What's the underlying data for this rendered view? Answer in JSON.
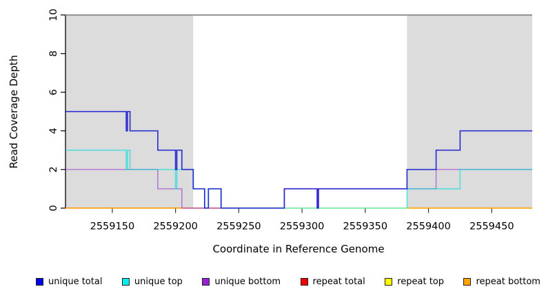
{
  "figure": {
    "background_color": "#ffffff",
    "repeat_region_fill": "#dcdcdc",
    "axis_color": "#000000",
    "tick_color": "#333333"
  },
  "chart_data": {
    "type": "line",
    "subtype": "step-coverage-plot",
    "title": "",
    "xlabel": "Coordinate in Reference Genome",
    "ylabel": "Read Coverage Depth",
    "xlim": [
      2559113,
      2559482
    ],
    "ylim": [
      0,
      10
    ],
    "x_ticks": [
      2559150,
      2559200,
      2559250,
      2559300,
      2559350,
      2559400,
      2559450
    ],
    "y_ticks": [
      0,
      2,
      4,
      6,
      8,
      10
    ],
    "grid": false,
    "shaded_repeat_regions": [
      {
        "name": "left-repeat-region",
        "x_start": 2559113,
        "x_end": 2559214
      },
      {
        "name": "right-repeat-region",
        "x_start": 2559383,
        "x_end": 2559482
      }
    ],
    "max_depth_cap_line": {
      "depth": 10,
      "color": "#8f8f8f",
      "x_start": 2559113,
      "x_end": 2559482
    },
    "series": [
      {
        "name": "unique total",
        "color": "#1c1ccd",
        "opacity": 0.9,
        "z": 6,
        "chains": [
          [
            [
              2559113,
              2559161,
              5
            ],
            [
              2559161,
              2559162,
              4
            ],
            [
              2559162,
              2559164,
              5
            ],
            [
              2559164,
              2559186,
              4
            ],
            [
              2559186,
              2559200,
              3
            ],
            [
              2559200,
              2559201,
              2
            ],
            [
              2559201,
              2559205,
              3
            ],
            [
              2559205,
              2559214,
              2
            ],
            [
              2559214,
              2559223,
              1
            ],
            [
              2559223,
              2559226,
              0
            ],
            [
              2559226,
              2559236,
              1
            ],
            [
              2559236,
              2559286,
              0
            ],
            [
              2559286,
              2559312,
              1
            ],
            [
              2559312,
              2559313,
              0
            ],
            [
              2559313,
              2559383,
              1
            ],
            [
              2559383,
              2559406,
              2
            ],
            [
              2559406,
              2559425,
              3
            ],
            [
              2559425,
              2559482,
              4
            ]
          ]
        ]
      },
      {
        "name": "unique top",
        "color": "#00dede",
        "opacity": 0.6,
        "z": 5,
        "chains": [
          [
            [
              2559113,
              2559161,
              3
            ],
            [
              2559161,
              2559162,
              2
            ],
            [
              2559162,
              2559164,
              3
            ],
            [
              2559164,
              2559200,
              2
            ],
            [
              2559200,
              2559201,
              1
            ],
            [
              2559201,
              2559214,
              2
            ],
            [
              2559214,
              2559223,
              1
            ],
            [
              2559223,
              2559226,
              0
            ],
            [
              2559226,
              2559236,
              1
            ],
            [
              2559236,
              2559383,
              0
            ],
            [
              2559383,
              2559425,
              1
            ],
            [
              2559425,
              2559482,
              2
            ]
          ]
        ]
      },
      {
        "name": "unique bottom",
        "color": "#9932cc",
        "opacity": 0.55,
        "z": 4,
        "chains": [
          [
            [
              2559113,
              2559186,
              2
            ],
            [
              2559186,
              2559205,
              1
            ],
            [
              2559205,
              2559286,
              0
            ],
            [
              2559286,
              2559312,
              1
            ],
            [
              2559312,
              2559313,
              0
            ],
            [
              2559313,
              2559406,
              1
            ],
            [
              2559406,
              2559482,
              2
            ]
          ]
        ]
      },
      {
        "name": "repeat total",
        "color": "#e8193c",
        "opacity": 0.55,
        "z": 2,
        "chains": [
          [
            [
              2559113,
              2559236,
              0
            ]
          ]
        ]
      },
      {
        "name": "repeat top",
        "color": "#ffff00",
        "opacity": 0.75,
        "z": 1,
        "chains": [
          [
            [
              2559113,
              2559482,
              0
            ]
          ]
        ]
      },
      {
        "name": "repeat bottom",
        "color": "#ff9d00",
        "opacity": 0.95,
        "z": 3,
        "chains": [
          [
            [
              2559113,
              2559206,
              0
            ]
          ],
          [
            [
              2559383,
              2559482,
              0
            ]
          ]
        ]
      }
    ]
  },
  "legend": {
    "items": [
      {
        "label": "unique total",
        "color": "#0000ee"
      },
      {
        "label": "unique top",
        "color": "#00eeee"
      },
      {
        "label": "unique bottom",
        "color": "#9a20d6"
      },
      {
        "label": "repeat total",
        "color": "#ee0000"
      },
      {
        "label": "repeat top",
        "color": "#ffff00"
      },
      {
        "label": "repeat bottom",
        "color": "#ffa300"
      }
    ]
  }
}
